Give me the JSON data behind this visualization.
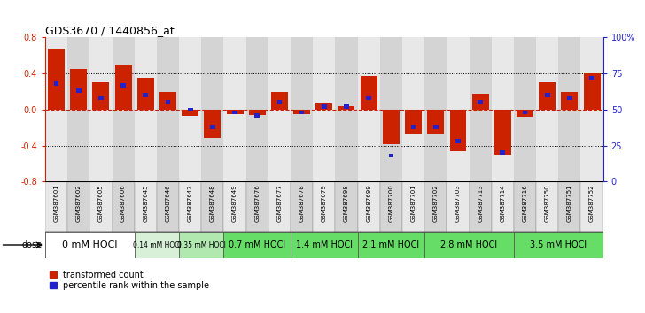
{
  "title": "GDS3670 / 1440856_at",
  "samples": [
    "GSM387601",
    "GSM387602",
    "GSM387605",
    "GSM387606",
    "GSM387645",
    "GSM387646",
    "GSM387647",
    "GSM387648",
    "GSM387649",
    "GSM387676",
    "GSM387677",
    "GSM387678",
    "GSM387679",
    "GSM387698",
    "GSM387699",
    "GSM387700",
    "GSM387701",
    "GSM387702",
    "GSM387703",
    "GSM387713",
    "GSM387714",
    "GSM387716",
    "GSM387750",
    "GSM387751",
    "GSM387752"
  ],
  "transformed_counts": [
    0.68,
    0.45,
    0.3,
    0.5,
    0.35,
    0.2,
    -0.07,
    -0.32,
    -0.05,
    -0.06,
    0.2,
    -0.05,
    0.07,
    0.04,
    0.37,
    -0.38,
    -0.28,
    -0.28,
    -0.46,
    0.18,
    -0.5,
    -0.08,
    0.3,
    0.2,
    0.4
  ],
  "percentile_ranks": [
    68,
    63,
    58,
    67,
    60,
    55,
    50,
    38,
    48,
    46,
    55,
    48,
    52,
    52,
    58,
    18,
    38,
    38,
    28,
    55,
    20,
    48,
    60,
    58,
    72
  ],
  "dose_groups": [
    {
      "label": "0 mM HOCl",
      "start": 0,
      "end": 4,
      "color": "#ffffff",
      "fontsize": 8
    },
    {
      "label": "0.14 mM HOCl",
      "start": 4,
      "end": 6,
      "color": "#d8f0d8",
      "fontsize": 5.5
    },
    {
      "label": "0.35 mM HOCl",
      "start": 6,
      "end": 8,
      "color": "#b0e8b0",
      "fontsize": 5.5
    },
    {
      "label": "0.7 mM HOCl",
      "start": 8,
      "end": 11,
      "color": "#66dd66",
      "fontsize": 7
    },
    {
      "label": "1.4 mM HOCl",
      "start": 11,
      "end": 14,
      "color": "#66dd66",
      "fontsize": 7
    },
    {
      "label": "2.1 mM HOCl",
      "start": 14,
      "end": 17,
      "color": "#66dd66",
      "fontsize": 7
    },
    {
      "label": "2.8 mM HOCl",
      "start": 17,
      "end": 21,
      "color": "#66dd66",
      "fontsize": 7
    },
    {
      "label": "3.5 mM HOCl",
      "start": 21,
      "end": 25,
      "color": "#66dd66",
      "fontsize": 7
    }
  ],
  "ylim": [
    -0.8,
    0.8
  ],
  "yticks_left": [
    -0.8,
    -0.4,
    0.0,
    0.4,
    0.8
  ],
  "yticks_right": [
    0,
    25,
    50,
    75,
    100
  ],
  "bar_color": "#cc2200",
  "percentile_color": "#2222cc",
  "zero_line_color": "#cc2200",
  "bg_color": "#ffffff",
  "col_bg_even": "#e8e8e8",
  "col_bg_odd": "#d4d4d4"
}
